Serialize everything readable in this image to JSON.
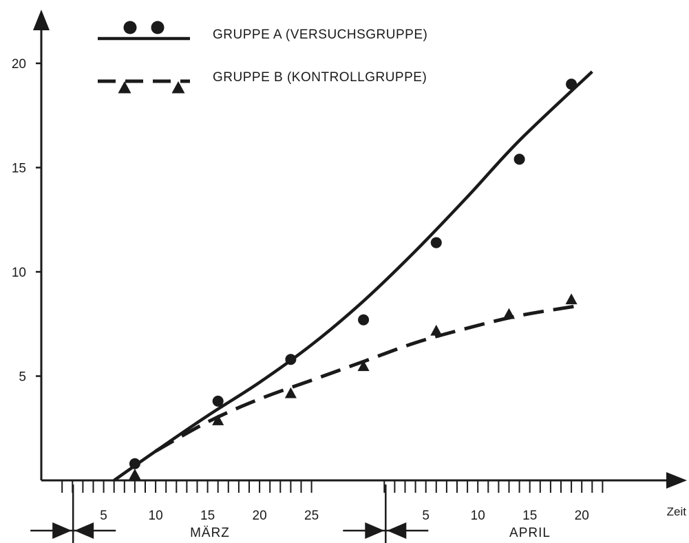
{
  "chart_data": {
    "type": "line",
    "title": "",
    "xlabel": "Zeit",
    "ylabel": "",
    "ylim": [
      0,
      20
    ],
    "yticks": [
      5,
      10,
      15,
      20
    ],
    "xlim": [
      "1978-03-01",
      "1978-04-25"
    ],
    "xticks": [
      {
        "date": "1978-03-05",
        "label": "5"
      },
      {
        "date": "1978-03-10",
        "label": "10"
      },
      {
        "date": "1978-03-15",
        "label": "15"
      },
      {
        "date": "1978-03-20",
        "label": "20"
      },
      {
        "date": "1978-03-25",
        "label": "25"
      },
      {
        "date": "1978-04-05",
        "label": "5"
      },
      {
        "date": "1978-04-10",
        "label": "10"
      },
      {
        "date": "1978-04-15",
        "label": "15"
      },
      {
        "date": "1978-04-20",
        "label": "20"
      }
    ],
    "months": [
      {
        "label": "MÄRZ",
        "start": "1978-03-01",
        "end": "1978-03-31"
      },
      {
        "label": "APRIL",
        "start": "1978-04-01",
        "end": "1978-04-30"
      }
    ],
    "legend_position": "top-left",
    "grid": false,
    "series": [
      {
        "name": "GRUPPE A (VERSUCHSGRUPPE)",
        "color": "#1a1a1a",
        "line_style": "solid",
        "marker": "circle",
        "points": [
          {
            "date": "1978-03-08",
            "value": 0.8
          },
          {
            "date": "1978-03-16",
            "value": 3.8
          },
          {
            "date": "1978-03-23",
            "value": 5.8
          },
          {
            "date": "1978-03-30",
            "value": 7.7
          },
          {
            "date": "1978-04-06",
            "value": 11.4
          },
          {
            "date": "1978-04-14",
            "value": 15.4
          },
          {
            "date": "1978-04-19",
            "value": 19.0
          }
        ],
        "trend": [
          {
            "date": "1978-03-06",
            "value": 0.0
          },
          {
            "date": "1978-03-10",
            "value": 1.4
          },
          {
            "date": "1978-03-15",
            "value": 3.1
          },
          {
            "date": "1978-03-20",
            "value": 4.7
          },
          {
            "date": "1978-03-25",
            "value": 6.5
          },
          {
            "date": "1978-03-30",
            "value": 8.6
          },
          {
            "date": "1978-04-04",
            "value": 11.0
          },
          {
            "date": "1978-04-09",
            "value": 13.6
          },
          {
            "date": "1978-04-14",
            "value": 16.3
          },
          {
            "date": "1978-04-21",
            "value": 19.6
          }
        ]
      },
      {
        "name": "GRUPPE B (KONTROLLGRUPPE)",
        "color": "#1a1a1a",
        "line_style": "dashed",
        "marker": "triangle",
        "points": [
          {
            "date": "1978-03-08",
            "value": 0.2
          },
          {
            "date": "1978-03-16",
            "value": 2.8
          },
          {
            "date": "1978-03-23",
            "value": 4.1
          },
          {
            "date": "1978-03-30",
            "value": 5.4
          },
          {
            "date": "1978-04-06",
            "value": 7.1
          },
          {
            "date": "1978-04-13",
            "value": 7.9
          },
          {
            "date": "1978-04-19",
            "value": 8.6
          }
        ],
        "trend": [
          {
            "date": "1978-03-10",
            "value": 1.4
          },
          {
            "date": "1978-03-15",
            "value": 2.8
          },
          {
            "date": "1978-03-20",
            "value": 3.9
          },
          {
            "date": "1978-03-25",
            "value": 4.8
          },
          {
            "date": "1978-03-30",
            "value": 5.7
          },
          {
            "date": "1978-04-04",
            "value": 6.6
          },
          {
            "date": "1978-04-09",
            "value": 7.3
          },
          {
            "date": "1978-04-14",
            "value": 7.9
          },
          {
            "date": "1978-04-20",
            "value": 8.4
          }
        ]
      }
    ]
  }
}
